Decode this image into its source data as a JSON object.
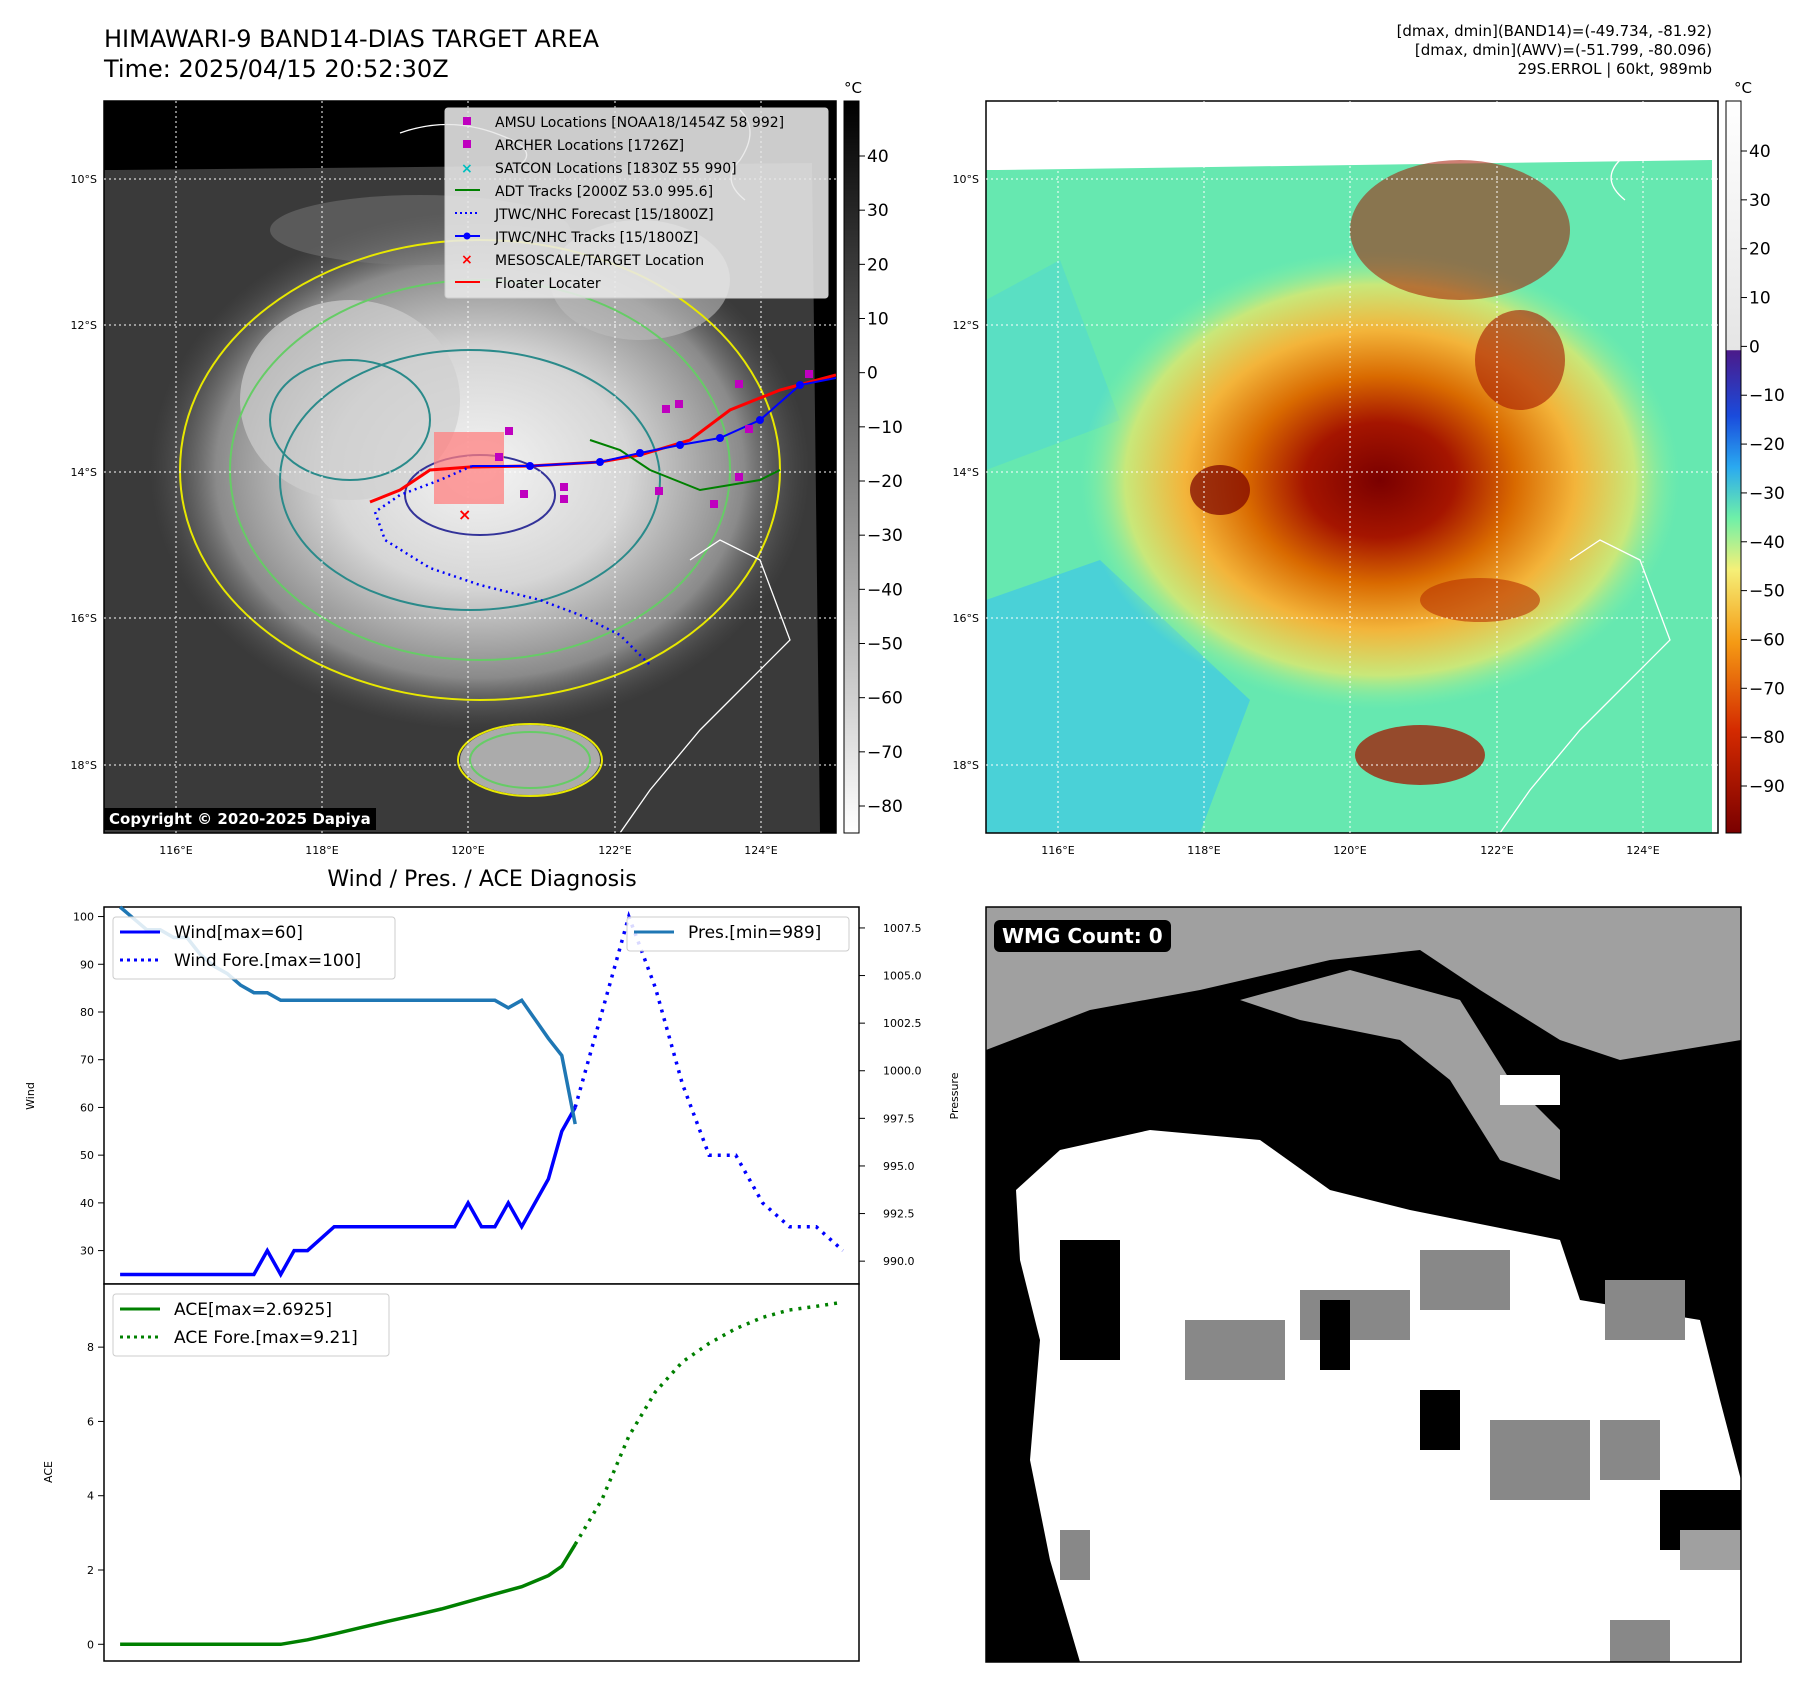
{
  "header": {
    "title_line1": "HIMAWARI-9 BAND14-DIAS TARGET AREA",
    "title_line2": "Time: 2025/04/15 20:52:30Z",
    "info_line1": "[dmax, dmin](BAND14)=(-49.734, -81.92)",
    "info_line2": "[dmax, dmin](AWV)=(-51.799, -80.096)",
    "info_line3": "29S.ERROL | 60kt, 989mb"
  },
  "map": {
    "lat_labels": [
      "10°S",
      "12°S",
      "14°S",
      "16°S",
      "18°S"
    ],
    "lon_labels": [
      "116°E",
      "118°E",
      "120°E",
      "122°E",
      "124°E"
    ],
    "copyright": "Copyright © 2020-2025 Dapiya",
    "legend": [
      {
        "label": "AMSU Locations [NOAA18/1454Z 58 992]",
        "marker": "square",
        "color": "#bf00bf"
      },
      {
        "label": "ARCHER Locations [1726Z]",
        "marker": "square",
        "color": "#bf00bf"
      },
      {
        "label": "SATCON Locations [1830Z 55 990]",
        "marker": "x",
        "color": "#00bfbf"
      },
      {
        "label": "ADT Tracks [2000Z 53.0 995.6]",
        "marker": "line",
        "color": "#008000"
      },
      {
        "label": "JTWC/NHC Forecast [15/1800Z]",
        "marker": "dotted",
        "color": "#0000ff"
      },
      {
        "label": "JTWC/NHC Tracks [15/1800Z]",
        "marker": "line-dot",
        "color": "#0000ff"
      },
      {
        "label": "MESOSCALE/TARGET Location",
        "marker": "x",
        "color": "#ff0000"
      },
      {
        "label": "Floater Locater",
        "marker": "line",
        "color": "#ff0000"
      }
    ]
  },
  "colorbar_gray": {
    "unit": "°C",
    "ticks": [
      "40",
      "30",
      "20",
      "10",
      "0",
      "−10",
      "−20",
      "−30",
      "−40",
      "−50",
      "−60",
      "−70",
      "−80"
    ]
  },
  "colorbar_color": {
    "unit": "°C",
    "ticks": [
      "40",
      "30",
      "20",
      "10",
      "0",
      "−10",
      "−20",
      "−30",
      "−40",
      "−50",
      "−60",
      "−70",
      "−80",
      "−90"
    ]
  },
  "wmg": {
    "label": "WMG Count: 0"
  },
  "colors": {
    "wind": "#0000ff",
    "pres": "#1f77b4",
    "ace": "#008000",
    "floater": "#ff0000",
    "adt": "#008000"
  },
  "chart_data": [
    {
      "type": "line",
      "title": "Wind / Pres. / ACE Diagnosis",
      "ylabel": "Wind",
      "y2label": "Pressure",
      "ylim": [
        23,
        102
      ],
      "y2lim": [
        988.8,
        1008.6
      ],
      "xlim": [
        -0.6,
        27.6
      ],
      "yticks": [
        30,
        40,
        50,
        60,
        70,
        80,
        90,
        100
      ],
      "y2ticks": [
        990.0,
        992.5,
        995.0,
        997.5,
        1000.0,
        1002.5,
        1005.0,
        1007.5
      ],
      "series": [
        {
          "name": "Wind[max=60]",
          "style": "solid",
          "axis": "left",
          "x": [
            0,
            1,
            2,
            3,
            4,
            5,
            5.5,
            6,
            6.5,
            7,
            8,
            9,
            10,
            11,
            12,
            12.5,
            13,
            13.5,
            14,
            14.5,
            15,
            15.5,
            16,
            16.5,
            17
          ],
          "values": [
            25,
            25,
            25,
            25,
            25,
            25,
            30,
            25,
            30,
            30,
            35,
            35,
            35,
            35,
            35,
            35,
            40,
            35,
            35,
            40,
            35,
            40,
            45,
            55,
            60
          ]
        },
        {
          "name": "Wind Fore.[max=100]",
          "style": "dotted",
          "axis": "left",
          "x": [
            17,
            18,
            19,
            20,
            21,
            22,
            23,
            24,
            25,
            26,
            27
          ],
          "values": [
            60,
            80,
            100,
            85,
            65,
            50,
            50,
            40,
            35,
            35,
            30
          ]
        },
        {
          "name": "Pres.[min=989]",
          "style": "solid",
          "axis": "right",
          "x": [
            0,
            0.5,
            1,
            1.5,
            2,
            2.5,
            3,
            3.5,
            4,
            4.5,
            5,
            5.5,
            6,
            6.5,
            7,
            8,
            9,
            10,
            11,
            12,
            12.5,
            13,
            13.5,
            14,
            14.5,
            15,
            15.5,
            16,
            16.5,
            17
          ],
          "values": [
            1008.6,
            1008.0,
            1007.4,
            1007.4,
            1007.0,
            1007.0,
            1006.1,
            1005.5,
            1005.1,
            1004.5,
            1004.1,
            1004.1,
            1003.7,
            1003.7,
            1003.7,
            1003.7,
            1003.7,
            1003.7,
            1003.7,
            1003.7,
            1003.7,
            1003.7,
            1003.7,
            1003.7,
            1003.3,
            1003.7,
            1002.7,
            1001.7,
            1000.8,
            997.2
          ]
        }
      ]
    },
    {
      "type": "line",
      "ylabel": "ACE",
      "ylim": [
        -0.45,
        9.7
      ],
      "xlim": [
        -0.6,
        27.6
      ],
      "yticks": [
        0,
        2,
        4,
        6,
        8
      ],
      "series": [
        {
          "name": "ACE[max=2.6925]",
          "style": "solid",
          "x": [
            0,
            1,
            2,
            3,
            4,
            5,
            6,
            7,
            8,
            9,
            10,
            11,
            12,
            13,
            14,
            15,
            16,
            16.5,
            17
          ],
          "values": [
            0,
            0,
            0,
            0,
            0,
            0,
            0,
            0.12,
            0.28,
            0.45,
            0.62,
            0.78,
            0.95,
            1.15,
            1.35,
            1.55,
            1.85,
            2.1,
            2.69
          ]
        },
        {
          "name": "ACE Fore.[max=9.21]",
          "style": "dotted",
          "x": [
            17,
            18,
            19,
            20,
            21,
            22,
            23,
            24,
            25,
            26,
            27
          ],
          "values": [
            2.69,
            3.9,
            5.6,
            6.8,
            7.6,
            8.1,
            8.5,
            8.8,
            9.0,
            9.1,
            9.21
          ]
        }
      ]
    }
  ]
}
